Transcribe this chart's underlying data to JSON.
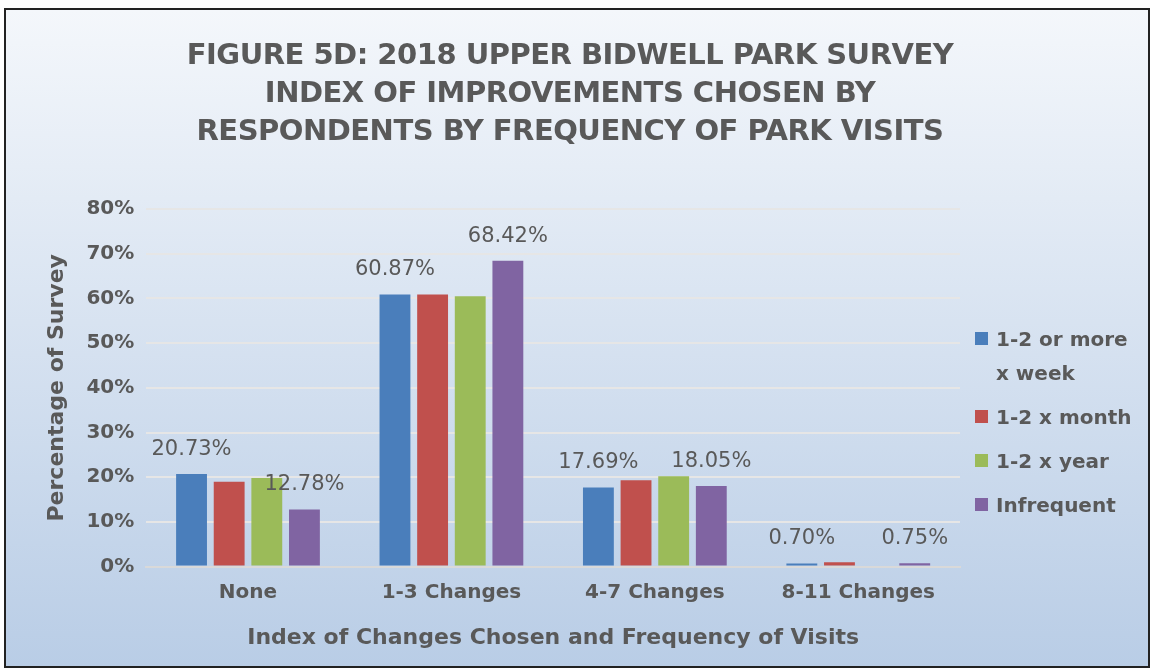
{
  "chart_data": {
    "type": "bar",
    "title": "FIGURE 5D: 2018 UPPER BIDWELL PARK SURVEY INDEX OF IMPROVEMENTS CHOSEN BY RESPONDENTS BY FREQUENCY OF PARK VISITS",
    "xlabel": "Index of Changes Chosen and Frequency of Visits",
    "ylabel": "Percentage of Survey",
    "categories": [
      "None",
      "1-3 Changes",
      "4-7 Changes",
      "8-11 Changes"
    ],
    "series": [
      {
        "name": "1-2 or more x week",
        "color": "#4a7ebb",
        "values": [
          20.73,
          60.87,
          17.69,
          0.7
        ],
        "value_labels": [
          "20.73%",
          "60.87%",
          "17.69%",
          "0.70%"
        ]
      },
      {
        "name": "1-2 x month",
        "color": "#c0504d",
        "values": [
          19.0,
          60.9,
          19.3,
          1.0
        ]
      },
      {
        "name": "1-2 x year",
        "color": "#9bbb59",
        "values": [
          19.8,
          60.5,
          20.2,
          0
        ]
      },
      {
        "name": "Infrequent",
        "color": "#8064a2",
        "values": [
          12.78,
          68.42,
          18.05,
          0.75
        ],
        "value_labels": [
          "12.78%",
          "68.42%",
          "18.05%",
          "0.75%"
        ]
      }
    ],
    "ylim": [
      0,
      80
    ],
    "yticks": [
      {
        "value": 0,
        "label": "0%"
      },
      {
        "value": 10,
        "label": "10%"
      },
      {
        "value": 20,
        "label": "20%"
      },
      {
        "value": 30,
        "label": "30%"
      },
      {
        "value": 40,
        "label": "40%"
      },
      {
        "value": 50,
        "label": "50%"
      },
      {
        "value": 60,
        "label": "60%"
      },
      {
        "value": 70,
        "label": "70%"
      },
      {
        "value": 80,
        "label": "80%"
      }
    ],
    "grid": "y",
    "legend": "right"
  }
}
